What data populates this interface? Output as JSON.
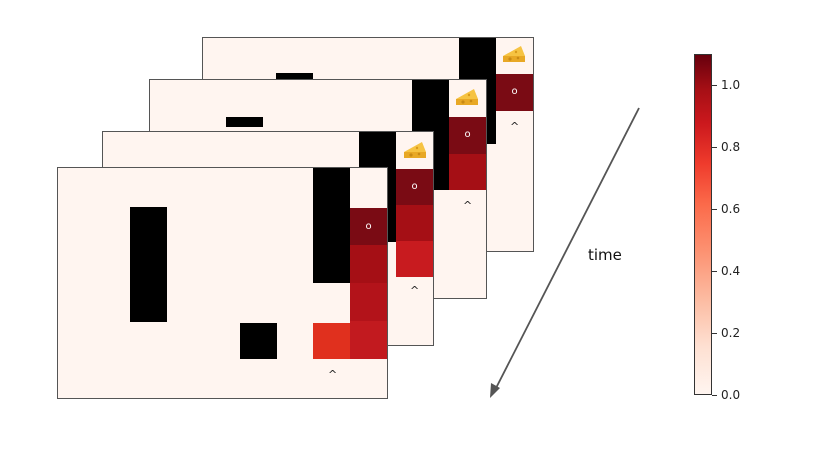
{
  "time_label": "time",
  "agent_marker": "o",
  "action_marker": "^",
  "colorbar": {
    "colormap": "Reds",
    "vmin": 0.0,
    "vmax": 1.1,
    "ticks": [
      "0.0",
      "0.2",
      "0.4",
      "0.6",
      "0.8",
      "1.0"
    ],
    "color_low": "#fff5f0",
    "color_high": "#67000d"
  },
  "colors": {
    "wall": "#000000",
    "visit_dark": "#7a0b14",
    "visit_mid": "#a50f15",
    "visit_light": "#e0301e",
    "background": "#fff5f0"
  },
  "icons": {
    "goal": "cheese-icon",
    "direction": "time-arrow"
  }
}
